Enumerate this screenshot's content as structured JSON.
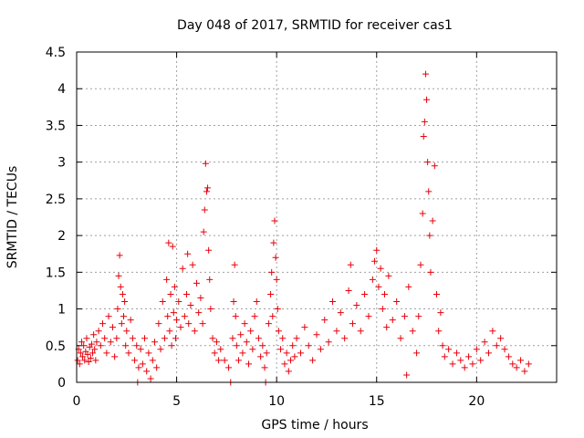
{
  "chart_data": {
    "type": "scatter",
    "title": "Day 048 of 2017, SRMTID for receiver cas1",
    "xlabel": "GPS time / hours",
    "ylabel": "SRMTID / TECUs",
    "xlim": [
      0,
      24
    ],
    "ylim": [
      0,
      4.5
    ],
    "xticks": [
      0,
      5,
      10,
      15,
      20
    ],
    "xtick_labels": [
      "0",
      "5",
      "10",
      "15",
      "20"
    ],
    "yticks": [
      0,
      0.5,
      1,
      1.5,
      2,
      2.5,
      3,
      3.5,
      4,
      4.5
    ],
    "ytick_labels": [
      "0",
      "0.5",
      "1",
      "1.5",
      "2",
      "2.5",
      "3",
      "3.5",
      "4",
      "4.5"
    ],
    "grid": true,
    "legend": "none",
    "marker": "+",
    "color": "#e8000b",
    "series": [
      {
        "name": "SRMTID",
        "points": [
          [
            0.05,
            0.3
          ],
          [
            0.1,
            0.45
          ],
          [
            0.15,
            0.25
          ],
          [
            0.2,
            0.4
          ],
          [
            0.25,
            0.55
          ],
          [
            0.3,
            0.35
          ],
          [
            0.35,
            0.5
          ],
          [
            0.4,
            0.3
          ],
          [
            0.45,
            0.42
          ],
          [
            0.5,
            0.6
          ],
          [
            0.55,
            0.38
          ],
          [
            0.6,
            0.28
          ],
          [
            0.65,
            0.48
          ],
          [
            0.7,
            0.33
          ],
          [
            0.75,
            0.52
          ],
          [
            0.8,
            0.4
          ],
          [
            0.85,
            0.65
          ],
          [
            0.9,
            0.45
          ],
          [
            0.95,
            0.3
          ],
          [
            1.0,
            0.55
          ],
          [
            1.1,
            0.7
          ],
          [
            1.2,
            0.5
          ],
          [
            1.3,
            0.8
          ],
          [
            1.4,
            0.6
          ],
          [
            1.5,
            0.4
          ],
          [
            1.6,
            0.9
          ],
          [
            1.7,
            0.55
          ],
          [
            1.8,
            0.75
          ],
          [
            1.9,
            0.35
          ],
          [
            2.0,
            0.6
          ],
          [
            2.05,
            1.0
          ],
          [
            2.1,
            1.45
          ],
          [
            2.15,
            1.73
          ],
          [
            2.2,
            1.3
          ],
          [
            2.25,
            0.8
          ],
          [
            2.3,
            1.2
          ],
          [
            2.35,
            0.9
          ],
          [
            2.4,
            1.1
          ],
          [
            2.45,
            0.5
          ],
          [
            2.5,
            0.7
          ],
          [
            2.6,
            0.4
          ],
          [
            2.7,
            0.85
          ],
          [
            2.8,
            0.6
          ],
          [
            2.9,
            0.3
          ],
          [
            3.0,
            0.5
          ],
          [
            3.05,
            0.0
          ],
          [
            3.1,
            0.2
          ],
          [
            3.2,
            0.45
          ],
          [
            3.3,
            0.25
          ],
          [
            3.4,
            0.6
          ],
          [
            3.5,
            0.15
          ],
          [
            3.6,
            0.4
          ],
          [
            3.7,
            0.05
          ],
          [
            3.8,
            0.3
          ],
          [
            3.9,
            0.55
          ],
          [
            4.0,
            0.2
          ],
          [
            4.1,
            0.8
          ],
          [
            4.2,
            0.45
          ],
          [
            4.3,
            1.1
          ],
          [
            4.4,
            0.6
          ],
          [
            4.5,
            1.4
          ],
          [
            4.55,
            0.9
          ],
          [
            4.6,
            1.9
          ],
          [
            4.65,
            0.7
          ],
          [
            4.7,
            1.2
          ],
          [
            4.75,
            0.5
          ],
          [
            4.8,
            1.85
          ],
          [
            4.85,
            0.95
          ],
          [
            4.9,
            1.3
          ],
          [
            4.95,
            0.6
          ],
          [
            5.0,
            0.85
          ],
          [
            5.1,
            1.1
          ],
          [
            5.2,
            0.75
          ],
          [
            5.3,
            1.55
          ],
          [
            5.4,
            0.9
          ],
          [
            5.5,
            1.2
          ],
          [
            5.55,
            1.75
          ],
          [
            5.6,
            0.8
          ],
          [
            5.7,
            1.05
          ],
          [
            5.8,
            1.6
          ],
          [
            5.9,
            0.7
          ],
          [
            6.0,
            1.35
          ],
          [
            6.1,
            0.95
          ],
          [
            6.2,
            1.15
          ],
          [
            6.3,
            0.8
          ],
          [
            6.35,
            2.05
          ],
          [
            6.4,
            2.35
          ],
          [
            6.45,
            2.98
          ],
          [
            6.5,
            2.6
          ],
          [
            6.55,
            2.65
          ],
          [
            6.6,
            1.8
          ],
          [
            6.65,
            1.4
          ],
          [
            6.7,
            1.0
          ],
          [
            6.8,
            0.6
          ],
          [
            6.9,
            0.4
          ],
          [
            7.0,
            0.55
          ],
          [
            7.1,
            0.3
          ],
          [
            7.2,
            0.45
          ],
          [
            7.4,
            0.3
          ],
          [
            7.6,
            0.2
          ],
          [
            7.7,
            0.0
          ],
          [
            7.8,
            0.6
          ],
          [
            7.85,
            1.1
          ],
          [
            7.9,
            1.6
          ],
          [
            7.95,
            0.9
          ],
          [
            8.0,
            0.5
          ],
          [
            8.1,
            0.3
          ],
          [
            8.2,
            0.65
          ],
          [
            8.3,
            0.4
          ],
          [
            8.4,
            0.8
          ],
          [
            8.5,
            0.55
          ],
          [
            8.6,
            0.25
          ],
          [
            8.7,
            0.7
          ],
          [
            8.8,
            0.45
          ],
          [
            8.9,
            0.9
          ],
          [
            9.0,
            1.1
          ],
          [
            9.1,
            0.6
          ],
          [
            9.2,
            0.35
          ],
          [
            9.3,
            0.5
          ],
          [
            9.4,
            0.2
          ],
          [
            9.45,
            0.0
          ],
          [
            9.5,
            0.4
          ],
          [
            9.6,
            0.8
          ],
          [
            9.7,
            1.2
          ],
          [
            9.75,
            1.5
          ],
          [
            9.8,
            0.9
          ],
          [
            9.85,
            1.9
          ],
          [
            9.9,
            2.2
          ],
          [
            9.95,
            1.7
          ],
          [
            10.0,
            1.4
          ],
          [
            10.05,
            1.0
          ],
          [
            10.1,
            0.7
          ],
          [
            10.2,
            0.45
          ],
          [
            10.3,
            0.6
          ],
          [
            10.4,
            0.25
          ],
          [
            10.5,
            0.4
          ],
          [
            10.6,
            0.15
          ],
          [
            10.7,
            0.3
          ],
          [
            10.8,
            0.5
          ],
          [
            10.9,
            0.35
          ],
          [
            11.0,
            0.6
          ],
          [
            11.2,
            0.4
          ],
          [
            11.4,
            0.75
          ],
          [
            11.6,
            0.5
          ],
          [
            11.8,
            0.3
          ],
          [
            12.0,
            0.65
          ],
          [
            12.2,
            0.45
          ],
          [
            12.4,
            0.85
          ],
          [
            12.6,
            0.55
          ],
          [
            12.8,
            1.1
          ],
          [
            13.0,
            0.7
          ],
          [
            13.2,
            0.95
          ],
          [
            13.4,
            0.6
          ],
          [
            13.6,
            1.25
          ],
          [
            13.7,
            1.6
          ],
          [
            13.8,
            0.8
          ],
          [
            14.0,
            1.05
          ],
          [
            14.2,
            0.7
          ],
          [
            14.4,
            1.2
          ],
          [
            14.6,
            0.9
          ],
          [
            14.8,
            1.4
          ],
          [
            14.9,
            1.65
          ],
          [
            15.0,
            1.8
          ],
          [
            15.1,
            1.3
          ],
          [
            15.2,
            1.55
          ],
          [
            15.3,
            1.0
          ],
          [
            15.4,
            1.2
          ],
          [
            15.5,
            0.75
          ],
          [
            15.6,
            1.45
          ],
          [
            15.8,
            0.85
          ],
          [
            16.0,
            1.1
          ],
          [
            16.2,
            0.6
          ],
          [
            16.4,
            0.9
          ],
          [
            16.5,
            0.1
          ],
          [
            16.6,
            1.3
          ],
          [
            16.8,
            0.7
          ],
          [
            17.0,
            0.4
          ],
          [
            17.1,
            0.9
          ],
          [
            17.2,
            1.6
          ],
          [
            17.3,
            2.3
          ],
          [
            17.35,
            3.35
          ],
          [
            17.4,
            3.55
          ],
          [
            17.45,
            4.2
          ],
          [
            17.5,
            3.85
          ],
          [
            17.55,
            3.0
          ],
          [
            17.6,
            2.6
          ],
          [
            17.65,
            2.0
          ],
          [
            17.7,
            1.5
          ],
          [
            17.8,
            2.2
          ],
          [
            17.9,
            2.95
          ],
          [
            18.0,
            1.2
          ],
          [
            18.1,
            0.7
          ],
          [
            18.2,
            0.95
          ],
          [
            18.3,
            0.5
          ],
          [
            18.4,
            0.35
          ],
          [
            18.6,
            0.45
          ],
          [
            18.8,
            0.25
          ],
          [
            19.0,
            0.4
          ],
          [
            19.2,
            0.3
          ],
          [
            19.4,
            0.2
          ],
          [
            19.6,
            0.35
          ],
          [
            19.8,
            0.25
          ],
          [
            20.0,
            0.45
          ],
          [
            20.2,
            0.3
          ],
          [
            20.4,
            0.55
          ],
          [
            20.6,
            0.4
          ],
          [
            20.8,
            0.7
          ],
          [
            21.0,
            0.5
          ],
          [
            21.2,
            0.6
          ],
          [
            21.4,
            0.45
          ],
          [
            21.6,
            0.35
          ],
          [
            21.8,
            0.25
          ],
          [
            22.0,
            0.2
          ],
          [
            22.2,
            0.3
          ],
          [
            22.4,
            0.15
          ],
          [
            22.6,
            0.25
          ]
        ]
      }
    ]
  }
}
